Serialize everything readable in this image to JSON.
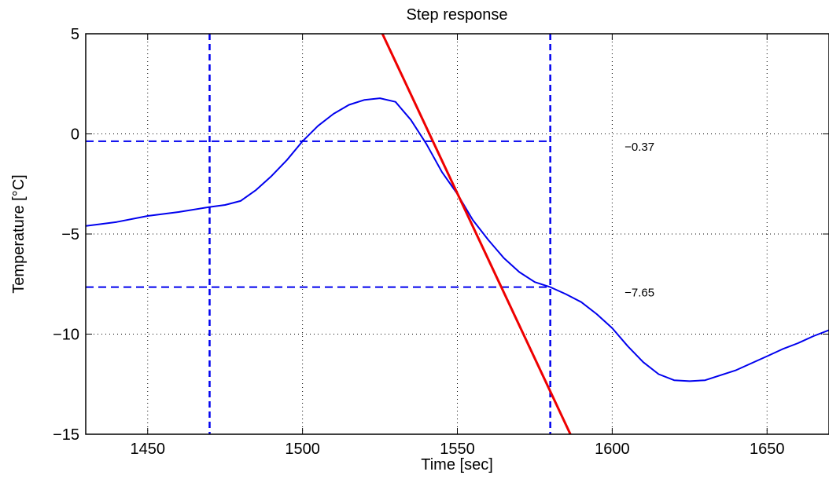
{
  "chart_data": {
    "type": "line",
    "title": "Step response",
    "xlabel": "Time [sec]",
    "ylabel": "Temperature [°C]",
    "xlim": [
      1430,
      1670
    ],
    "ylim": [
      -15,
      5
    ],
    "x_ticks": [
      1450,
      1500,
      1550,
      1600,
      1650
    ],
    "x_tick_labels": [
      "1450",
      "1500",
      "1550",
      "1600",
      "1650"
    ],
    "y_ticks": [
      5,
      0,
      -5,
      -10,
      -15
    ],
    "y_tick_labels": [
      "5",
      "0",
      "−5",
      "−10",
      "−15"
    ],
    "grid": true,
    "series": [
      {
        "type": "line",
        "color": "#0000ee",
        "x": [
          1430,
          1440,
          1450,
          1460,
          1470,
          1475,
          1480,
          1485,
          1490,
          1495,
          1500,
          1505,
          1510,
          1515,
          1520,
          1525,
          1530,
          1535,
          1540,
          1545,
          1550,
          1555,
          1560,
          1565,
          1570,
          1575,
          1580,
          1585,
          1590,
          1595,
          1600,
          1605,
          1610,
          1615,
          1620,
          1625,
          1630,
          1635,
          1640,
          1645,
          1650,
          1655,
          1660,
          1665,
          1670
        ],
        "y": [
          -4.6,
          -4.4,
          -4.1,
          -3.9,
          -3.65,
          -3.55,
          -3.35,
          -2.8,
          -2.1,
          -1.3,
          -0.37,
          0.4,
          1.0,
          1.45,
          1.7,
          1.78,
          1.6,
          0.7,
          -0.5,
          -1.9,
          -3.0,
          -4.3,
          -5.3,
          -6.2,
          -6.9,
          -7.4,
          -7.65,
          -8.0,
          -8.4,
          -9.0,
          -9.7,
          -10.6,
          -11.4,
          -12.0,
          -12.3,
          -12.35,
          -12.3,
          -12.05,
          -11.8,
          -11.45,
          -11.1,
          -10.75,
          -10.45,
          -10.1,
          -9.8
        ]
      },
      {
        "type": "line",
        "color": "#ee0000",
        "x": [
          1525.8,
          1586.5
        ],
        "y": [
          5,
          -15
        ]
      }
    ],
    "reference_lines": {
      "vertical": [
        1470,
        1580
      ],
      "horizontal": [
        -0.37,
        -7.65
      ],
      "color": "#0000ee",
      "style": "dashed"
    },
    "annotations": [
      {
        "text": "−0.37",
        "x": 1604,
        "y": -0.37
      },
      {
        "text": "−7.65",
        "x": 1604,
        "y": -7.65
      }
    ]
  }
}
